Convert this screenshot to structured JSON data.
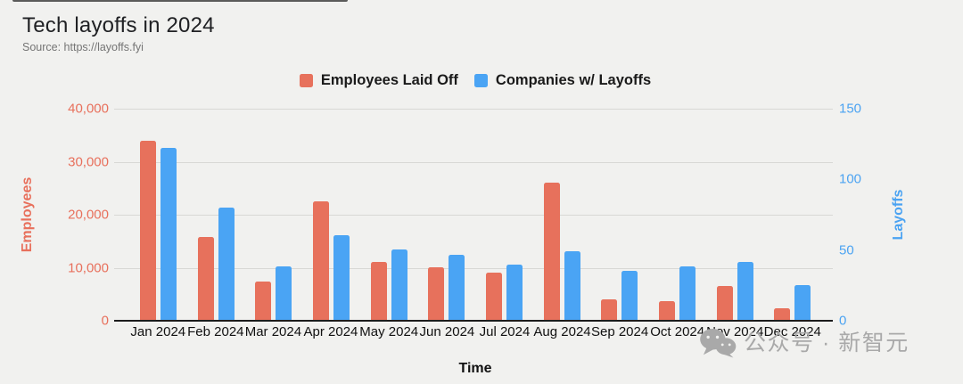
{
  "title": "Tech layoffs in 2024",
  "source": "Source: https://layoffs.fyi",
  "watermark": "公众号 · 新智元",
  "colors": {
    "background": "#f1f1ef",
    "employees_bar": "#e7715c",
    "companies_bar": "#4aa4f4",
    "left_axis_text": "#e8705c",
    "right_axis_text": "#4ba3f2",
    "gridline": "#d8d8d5",
    "baseline": "#1c1c1c"
  },
  "legend": [
    {
      "label": "Employees Laid Off",
      "color": "#e7715c"
    },
    {
      "label": "Companies w/ Layoffs",
      "color": "#4aa4f4"
    }
  ],
  "chart_data": {
    "type": "bar",
    "title": "Tech layoffs in 2024",
    "categories": [
      "Jan 2024",
      "Feb 2024",
      "Mar 2024",
      "Apr 2024",
      "May 2024",
      "Jun 2024",
      "Jul 2024",
      "Aug 2024",
      "Sep 2024",
      "Oct 2024",
      "Nov 2024",
      "Dec 2024"
    ],
    "series": [
      {
        "name": "Employees Laid Off",
        "axis": "left",
        "values": [
          34000,
          15700,
          7300,
          22400,
          11000,
          10000,
          8900,
          26000,
          3900,
          3550,
          6500,
          2250
        ]
      },
      {
        "name": "Companies w/ Layoffs",
        "axis": "right",
        "values": [
          122,
          80,
          38,
          60,
          50,
          46,
          39,
          49,
          35,
          38,
          41,
          25
        ]
      }
    ],
    "left_axis": {
      "label": "Employees",
      "ticks": [
        "0",
        "10,000",
        "20,000",
        "30,000",
        "40,000"
      ],
      "min": 0,
      "max": 40000
    },
    "right_axis": {
      "label": "Layoffs",
      "ticks": [
        "0",
        "50",
        "100",
        "150"
      ],
      "min": 0,
      "max": 150
    },
    "xlabel": "Time",
    "grid": true,
    "legend_position": "top"
  }
}
